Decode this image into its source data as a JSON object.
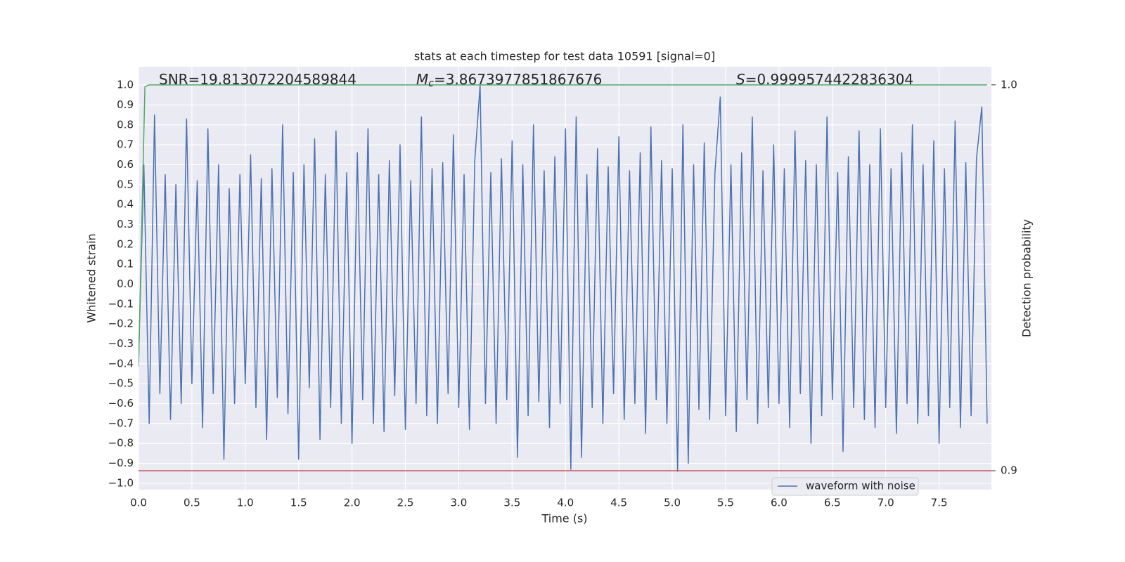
{
  "chart_data": {
    "type": "line",
    "title": "stats at each timestep for test data 10591 [signal=0]",
    "xlabel": "Time (s)",
    "ylabel": "Whitened strain",
    "y2label": "Detection probability",
    "annotations": [
      {
        "text": "SNR=19.813072204589844"
      },
      {
        "symbol": "M",
        "subscript": "c",
        "text": "=3.8673977851867676"
      },
      {
        "symbol": "S",
        "text": "=0.9999574422836304"
      }
    ],
    "xlim": [
      0,
      7.99
    ],
    "ylim": [
      -1.032,
      1.092
    ],
    "y2lim": [
      0.8951,
      1.0047
    ],
    "xticks": [
      {
        "value": 0,
        "label": "0.0"
      },
      0.5,
      {
        "value": 1,
        "label": "1.0"
      },
      1.5,
      {
        "value": 2,
        "label": "2.0"
      },
      2.5,
      {
        "value": 3,
        "label": "3.0"
      },
      3.5,
      {
        "value": 4,
        "label": "4.0"
      },
      4.5,
      {
        "value": 5,
        "label": "5.0"
      },
      5.5,
      {
        "value": 6,
        "label": "6.0"
      },
      6.5,
      {
        "value": 7,
        "label": "7.0"
      },
      7.5
    ],
    "yticks": [
      {
        "value": 1,
        "label": "1.0"
      },
      0.9,
      0.8,
      0.7,
      0.6,
      0.5,
      0.4,
      0.3,
      0.2,
      0.1,
      {
        "value": 0,
        "label": "0.0"
      },
      {
        "value": -0.1,
        "label": "−0.1"
      },
      {
        "value": -0.2,
        "label": "−0.2"
      },
      {
        "value": -0.3,
        "label": "−0.3"
      },
      {
        "value": -0.4,
        "label": "−0.4"
      },
      {
        "value": -0.5,
        "label": "−0.5"
      },
      {
        "value": -0.6,
        "label": "−0.6"
      },
      {
        "value": -0.7,
        "label": "−0.7"
      },
      {
        "value": -0.8,
        "label": "−0.8"
      },
      {
        "value": -0.9,
        "label": "−0.9"
      },
      {
        "value": -1,
        "label": "−1.0"
      }
    ],
    "y2ticks": [
      {
        "value": 1,
        "label": "1.0"
      },
      0.9
    ],
    "grid": true,
    "legend": "lower right",
    "series": [
      {
        "name": "waveform with noise",
        "color": "#4c72b0",
        "axis": "y",
        "x": [
          0,
          0.05,
          0.1,
          0.15,
          0.2,
          0.25,
          0.3,
          0.35,
          0.4,
          0.45,
          0.5,
          0.55,
          0.6,
          0.65,
          0.7,
          0.75,
          0.8,
          0.85,
          0.9,
          0.95,
          1,
          1.05,
          1.1,
          1.15,
          1.2,
          1.25,
          1.3,
          1.35,
          1.4,
          1.45,
          1.5,
          1.55,
          1.6,
          1.65,
          1.7,
          1.75,
          1.8,
          1.85,
          1.9,
          1.95,
          2,
          2.05,
          2.1,
          2.15,
          2.2,
          2.25,
          2.3,
          2.35,
          2.4,
          2.45,
          2.5,
          2.55,
          2.6,
          2.65,
          2.7,
          2.75,
          2.8,
          2.85,
          2.9,
          2.95,
          3,
          3.05,
          3.1,
          3.15,
          3.2,
          3.25,
          3.3,
          3.35,
          3.4,
          3.45,
          3.5,
          3.55,
          3.6,
          3.65,
          3.7,
          3.75,
          3.8,
          3.85,
          3.9,
          3.95,
          4,
          4.05,
          4.1,
          4.15,
          4.2,
          4.25,
          4.3,
          4.35,
          4.4,
          4.45,
          4.5,
          4.55,
          4.6,
          4.65,
          4.7,
          4.75,
          4.8,
          4.85,
          4.9,
          4.95,
          5,
          5.05,
          5.1,
          5.15,
          5.2,
          5.25,
          5.3,
          5.35,
          5.4,
          5.45,
          5.5,
          5.55,
          5.6,
          5.65,
          5.7,
          5.75,
          5.8,
          5.85,
          5.9,
          5.95,
          6,
          6.05,
          6.1,
          6.15,
          6.2,
          6.25,
          6.3,
          6.35,
          6.4,
          6.45,
          6.5,
          6.55,
          6.6,
          6.65,
          6.7,
          6.75,
          6.8,
          6.85,
          6.9,
          6.95,
          7,
          7.05,
          7.1,
          7.15,
          7.2,
          7.25,
          7.3,
          7.35,
          7.4,
          7.45,
          7.5,
          7.55,
          7.6,
          7.65,
          7.7,
          7.75,
          7.8,
          7.85,
          7.9,
          7.95
        ],
        "values": [
          -0.4,
          0.6,
          -0.7,
          0.85,
          -0.55,
          0.55,
          -0.68,
          0.5,
          -0.6,
          0.83,
          -0.5,
          0.52,
          -0.72,
          0.78,
          -0.55,
          0.6,
          -0.88,
          0.48,
          -0.6,
          0.55,
          -0.5,
          0.65,
          -0.62,
          0.53,
          -0.78,
          0.58,
          -0.57,
          0.8,
          -0.65,
          0.56,
          -0.88,
          0.6,
          -0.52,
          0.73,
          -0.78,
          0.55,
          -0.62,
          0.77,
          -0.7,
          0.56,
          -0.8,
          0.66,
          -0.58,
          0.78,
          -0.7,
          0.55,
          -0.74,
          0.62,
          -0.56,
          0.7,
          -0.73,
          0.52,
          -0.6,
          0.84,
          -0.66,
          0.58,
          -0.7,
          0.61,
          -0.55,
          0.75,
          -0.62,
          0.55,
          -0.73,
          0.62,
          1.0,
          -0.6,
          0.56,
          -0.7,
          0.63,
          -0.58,
          0.72,
          -0.87,
          0.6,
          -0.66,
          0.8,
          -0.59,
          0.57,
          -0.72,
          0.64,
          -0.6,
          0.78,
          -0.93,
          0.84,
          -0.87,
          0.55,
          -0.62,
          0.68,
          -0.7,
          0.59,
          -0.55,
          0.74,
          -0.68,
          0.57,
          -0.6,
          0.66,
          -0.75,
          0.79,
          -0.58,
          0.62,
          -0.7,
          0.58,
          -0.94,
          0.8,
          -0.9,
          0.6,
          -0.63,
          0.71,
          -0.68,
          0.56,
          0.94,
          -0.66,
          0.6,
          -0.74,
          0.66,
          -0.58,
          0.84,
          -0.7,
          0.57,
          -0.62,
          0.7,
          -0.6,
          0.58,
          -0.72,
          0.77,
          -0.55,
          0.62,
          -0.8,
          0.6,
          -0.66,
          0.84,
          -0.58,
          0.56,
          -0.84,
          0.64,
          -0.62,
          0.77,
          -0.68,
          0.6,
          -0.72,
          0.78,
          -0.62,
          0.58,
          -0.75,
          0.66,
          -0.6,
          0.8,
          -0.7,
          0.6,
          -0.66,
          0.72,
          -0.8,
          0.58,
          -0.62,
          0.82,
          -0.72,
          0.61,
          -0.66,
          0.63,
          0.89,
          -0.7
        ]
      },
      {
        "color": "#55a868",
        "axis": "y2",
        "x": [
          0,
          0.06,
          0.1,
          7.95
        ],
        "values": [
          0.927,
          0.9995,
          1.0,
          1.0
        ]
      },
      {
        "color": "#c44e52",
        "axis": "y2",
        "x": [
          0,
          7.99
        ],
        "values": [
          0.9,
          0.9
        ]
      }
    ]
  }
}
